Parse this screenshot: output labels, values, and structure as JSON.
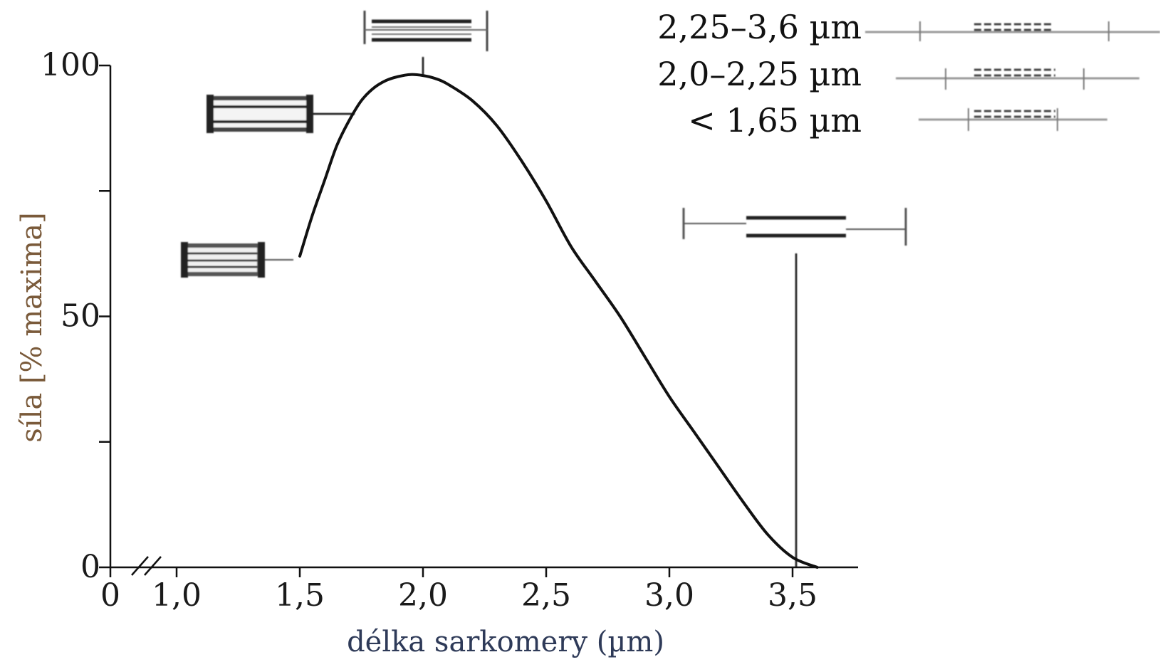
{
  "chart_data": {
    "type": "line",
    "xlabel": "délka sarkomery (µm)",
    "ylabel": "síla [% maxima]",
    "x_ticks": [
      "0",
      "1,0",
      "1,5",
      "2,0",
      "2,5",
      "3,0",
      "3,5"
    ],
    "y_ticks": [
      "0",
      "50",
      "100"
    ],
    "xlim": [
      1.0,
      3.6
    ],
    "ylim": [
      0,
      100
    ],
    "axis_break": true,
    "grid": false,
    "series": [
      {
        "x": [
          1.5,
          1.55,
          1.6,
          1.65,
          1.7,
          1.75,
          1.8,
          1.85,
          1.9,
          1.95,
          2.0,
          2.05,
          2.1,
          2.2,
          2.3,
          2.4,
          2.5,
          2.6,
          2.7,
          2.8,
          2.9,
          3.0,
          3.1,
          3.2,
          3.3,
          3.4,
          3.5,
          3.6
        ],
        "y": [
          62,
          70,
          77,
          84,
          89,
          93,
          95.5,
          97,
          97.8,
          98.2,
          98,
          97.4,
          96.3,
          93,
          88,
          81,
          73,
          64,
          57,
          50,
          42,
          34,
          27,
          20,
          13,
          6.5,
          2,
          0
        ]
      }
    ],
    "legend": {
      "entries": [
        "2,25–3,6 µm",
        "2,0–2,25 µm",
        "< 1,65 µm"
      ],
      "placement": "top-right"
    },
    "colors": {
      "ylabel": "#7a5a3a",
      "xlabel": "#2e3a58",
      "curve": "#111111"
    }
  }
}
